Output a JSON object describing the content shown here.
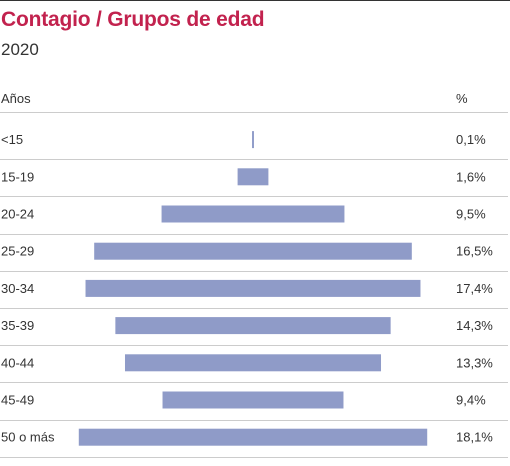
{
  "header": {
    "title": "Contagio / Grupos de edad",
    "subtitle": "2020"
  },
  "columns": {
    "left": "Años",
    "right": "%"
  },
  "colors": {
    "title": "#c2224e",
    "bar": "#8f9bc8",
    "rule": "#cccccc",
    "text": "#333333"
  },
  "chart_data": {
    "type": "bar",
    "orientation": "horizontal-centered",
    "categories": [
      "<15",
      "15-19",
      "20-24",
      "25-29",
      "30-34",
      "35-39",
      "40-44",
      "45-49",
      "50 o más"
    ],
    "values": [
      0.1,
      1.6,
      9.5,
      16.5,
      17.4,
      14.3,
      13.3,
      9.4,
      18.1
    ],
    "value_labels": [
      "0,1%",
      "1,6%",
      "9,5%",
      "16,5%",
      "17,4%",
      "14,3%",
      "13,3%",
      "9,4%",
      "18,1%"
    ],
    "title": "Contagio / Grupos de edad",
    "subtitle": "2020",
    "xlabel": "",
    "ylabel": "Años",
    "grid": false
  }
}
